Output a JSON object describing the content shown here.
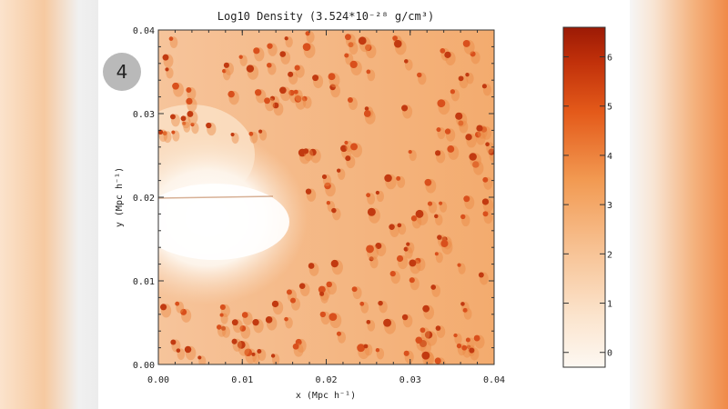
{
  "slide_badge": "4",
  "chart_data": {
    "type": "heatmap",
    "title": "Log10 Density (3.524*10⁻²⁸ g/cm³)",
    "xlabel": "x (Mpc h⁻¹)",
    "ylabel": "y (Mpc h⁻¹)",
    "xlim": [
      0.0,
      0.04
    ],
    "ylim": [
      0.0,
      0.04
    ],
    "x_ticks": [
      "0.00",
      "0.01",
      "0.02",
      "0.03",
      "0.04"
    ],
    "y_ticks": [
      "0.00",
      "0.01",
      "0.02",
      "0.03",
      "0.04"
    ],
    "colorbar": {
      "range": [
        -0.3,
        6.6
      ],
      "ticks": [
        "0",
        "1",
        "2",
        "3",
        "4",
        "5",
        "6"
      ],
      "colors": {
        "low": "#fdf6ee",
        "mid": "#f29a52",
        "high": "#9c1a05"
      }
    }
  }
}
